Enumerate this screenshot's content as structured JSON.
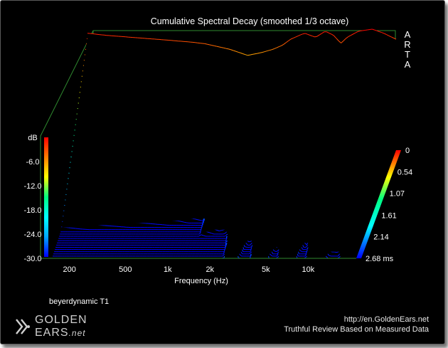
{
  "chart_data": {
    "type": "waterfall",
    "title": "Cumulative Spectral Decay (smoothed 1/3 octave)",
    "software_label": "ARTA",
    "xlabel": "Frequency (Hz)",
    "x_scale": "log",
    "x_range": [
      150,
      22000
    ],
    "x_ticks": [
      "200",
      "500",
      "1k",
      "2k",
      "5k",
      "10k"
    ],
    "x_tick_values": [
      200,
      500,
      1000,
      2000,
      5000,
      10000
    ],
    "ylabel": "dB",
    "y_range": [
      -30.0,
      0.0
    ],
    "y_ticks": [
      "-6.0",
      "-12.0",
      "-18.0",
      "-24.0",
      "-30.0"
    ],
    "y_tick_values": [
      -6,
      -12,
      -18,
      -24,
      -30
    ],
    "z_label": "ms",
    "z_ticks": [
      "0",
      "0.54",
      "1.07",
      "1.61",
      "2.14",
      "2.68 ms"
    ],
    "z_tick_values": [
      0,
      0.54,
      1.07,
      1.61,
      2.14,
      2.68
    ],
    "z_range": [
      0,
      2.68
    ],
    "slice_count": 50,
    "colormap": [
      "#0000ff",
      "#00aaff",
      "#00ffff",
      "#00ff80",
      "#ffff00",
      "#ff8000",
      "#ff0000"
    ],
    "initial_response": {
      "frequency_hz": [
        150,
        200,
        300,
        500,
        800,
        1000,
        1500,
        2000,
        2500,
        3000,
        3500,
        4000,
        5000,
        6000,
        7000,
        8000,
        9000,
        10000,
        12000,
        15000,
        18000,
        22000
      ],
      "level_db": [
        -1.0,
        -1.5,
        -2.0,
        -2.6,
        -3.2,
        -3.6,
        -5.0,
        -6.5,
        -5.8,
        -5.0,
        -4.0,
        -2.5,
        -1.0,
        -2.0,
        -0.5,
        -1.5,
        -3.5,
        -2.0,
        -0.5,
        0.0,
        -1.0,
        -2.5
      ]
    },
    "annotation": "beyerdynamic T1"
  },
  "footer": {
    "logo_line1": "GOLDEN",
    "logo_line2": "EARS",
    "logo_suffix": ".net",
    "site_url": "http://en.GoldenEars.net",
    "tagline": "Truthful Review Based on Measured Data"
  },
  "colors": {
    "background": "#000000",
    "frame_border": "#5a5a5a",
    "axis_box": "#2f8a2f",
    "text": "#ffffff"
  }
}
